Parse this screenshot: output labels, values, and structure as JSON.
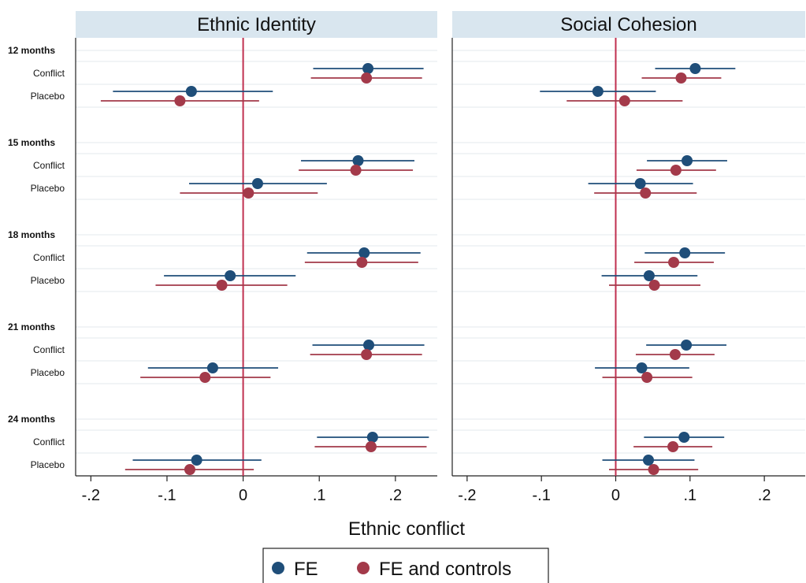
{
  "chart_data": {
    "type": "scatter",
    "subtype": "coefficient-plot",
    "xlabel": "Ethnic conflict",
    "xlim": [
      -0.22,
      0.255
    ],
    "xticks": [
      -0.2,
      -0.1,
      0,
      0.1,
      0.2
    ],
    "xtick_labels": [
      "-.2",
      "-.1",
      "0",
      ".1",
      ".2"
    ],
    "reference_line_x": 0,
    "reference_line_color": "#c0304f",
    "grid": "horizontal",
    "legend_position": "bottom",
    "group_labels": [
      "12 months",
      "15 months",
      "18 months",
      "21 months",
      "24 months"
    ],
    "row_labels": [
      "Conflict",
      "Placebo"
    ],
    "series": [
      {
        "name": "FE",
        "color": "#1f4e79",
        "marker": "circle"
      },
      {
        "name": "FE and controls",
        "color": "#a33a4a",
        "marker": "circle"
      }
    ],
    "panels": [
      {
        "title": "Ethnic Identity",
        "groups": [
          {
            "label": "12 months",
            "rows": [
              {
                "label": "Conflict",
                "FE": {
                  "est": 0.164,
                  "lo": 0.092,
                  "hi": 0.237
                },
                "FE and controls": {
                  "est": 0.162,
                  "lo": 0.089,
                  "hi": 0.235
                }
              },
              {
                "label": "Placebo",
                "FE": {
                  "est": -0.068,
                  "lo": -0.171,
                  "hi": 0.039
                },
                "FE and controls": {
                  "est": -0.083,
                  "lo": -0.187,
                  "hi": 0.021
                }
              }
            ]
          },
          {
            "label": "15 months",
            "rows": [
              {
                "label": "Conflict",
                "FE": {
                  "est": 0.151,
                  "lo": 0.076,
                  "hi": 0.225
                },
                "FE and controls": {
                  "est": 0.148,
                  "lo": 0.073,
                  "hi": 0.223
                }
              },
              {
                "label": "Placebo",
                "FE": {
                  "est": 0.019,
                  "lo": -0.071,
                  "hi": 0.11
                },
                "FE and controls": {
                  "est": 0.007,
                  "lo": -0.083,
                  "hi": 0.098
                }
              }
            ]
          },
          {
            "label": "18 months",
            "rows": [
              {
                "label": "Conflict",
                "FE": {
                  "est": 0.159,
                  "lo": 0.084,
                  "hi": 0.233
                },
                "FE and controls": {
                  "est": 0.156,
                  "lo": 0.081,
                  "hi": 0.23
                }
              },
              {
                "label": "Placebo",
                "FE": {
                  "est": -0.017,
                  "lo": -0.104,
                  "hi": 0.069
                },
                "FE and controls": {
                  "est": -0.028,
                  "lo": -0.115,
                  "hi": 0.058
                }
              }
            ]
          },
          {
            "label": "21 months",
            "rows": [
              {
                "label": "Conflict",
                "FE": {
                  "est": 0.165,
                  "lo": 0.091,
                  "hi": 0.238
                },
                "FE and controls": {
                  "est": 0.162,
                  "lo": 0.088,
                  "hi": 0.235
                }
              },
              {
                "label": "Placebo",
                "FE": {
                  "est": -0.04,
                  "lo": -0.125,
                  "hi": 0.046
                },
                "FE and controls": {
                  "est": -0.05,
                  "lo": -0.135,
                  "hi": 0.036
                }
              }
            ]
          },
          {
            "label": "24 months",
            "rows": [
              {
                "label": "Conflict",
                "FE": {
                  "est": 0.17,
                  "lo": 0.097,
                  "hi": 0.244
                },
                "FE and controls": {
                  "est": 0.168,
                  "lo": 0.094,
                  "hi": 0.241
                }
              },
              {
                "label": "Placebo",
                "FE": {
                  "est": -0.061,
                  "lo": -0.145,
                  "hi": 0.024
                },
                "FE and controls": {
                  "est": -0.07,
                  "lo": -0.155,
                  "hi": 0.014
                }
              }
            ]
          }
        ]
      },
      {
        "title": "Social Cohesion",
        "groups": [
          {
            "label": "12 months",
            "rows": [
              {
                "label": "Conflict",
                "FE": {
                  "est": 0.107,
                  "lo": 0.053,
                  "hi": 0.161
                },
                "FE and controls": {
                  "est": 0.088,
                  "lo": 0.035,
                  "hi": 0.142
                }
              },
              {
                "label": "Placebo",
                "FE": {
                  "est": -0.024,
                  "lo": -0.102,
                  "hi": 0.054
                },
                "FE and controls": {
                  "est": 0.012,
                  "lo": -0.066,
                  "hi": 0.09
                }
              }
            ]
          },
          {
            "label": "15 months",
            "rows": [
              {
                "label": "Conflict",
                "FE": {
                  "est": 0.096,
                  "lo": 0.042,
                  "hi": 0.15
                },
                "FE and controls": {
                  "est": 0.081,
                  "lo": 0.028,
                  "hi": 0.135
                }
              },
              {
                "label": "Placebo",
                "FE": {
                  "est": 0.033,
                  "lo": -0.037,
                  "hi": 0.104
                },
                "FE and controls": {
                  "est": 0.04,
                  "lo": -0.029,
                  "hi": 0.109
                }
              }
            ]
          },
          {
            "label": "18 months",
            "rows": [
              {
                "label": "Conflict",
                "FE": {
                  "est": 0.093,
                  "lo": 0.039,
                  "hi": 0.147
                },
                "FE and controls": {
                  "est": 0.078,
                  "lo": 0.025,
                  "hi": 0.132
                }
              },
              {
                "label": "Placebo",
                "FE": {
                  "est": 0.045,
                  "lo": -0.019,
                  "hi": 0.11
                },
                "FE and controls": {
                  "est": 0.052,
                  "lo": -0.009,
                  "hi": 0.114
                }
              }
            ]
          },
          {
            "label": "21 months",
            "rows": [
              {
                "label": "Conflict",
                "FE": {
                  "est": 0.095,
                  "lo": 0.041,
                  "hi": 0.149
                },
                "FE and controls": {
                  "est": 0.08,
                  "lo": 0.027,
                  "hi": 0.133
                }
              },
              {
                "label": "Placebo",
                "FE": {
                  "est": 0.035,
                  "lo": -0.028,
                  "hi": 0.099
                },
                "FE and controls": {
                  "est": 0.042,
                  "lo": -0.018,
                  "hi": 0.103
                }
              }
            ]
          },
          {
            "label": "24 months",
            "rows": [
              {
                "label": "Conflict",
                "FE": {
                  "est": 0.092,
                  "lo": 0.038,
                  "hi": 0.146
                },
                "FE and controls": {
                  "est": 0.077,
                  "lo": 0.024,
                  "hi": 0.13
                }
              },
              {
                "label": "Placebo",
                "FE": {
                  "est": 0.044,
                  "lo": -0.018,
                  "hi": 0.106
                },
                "FE and controls": {
                  "est": 0.051,
                  "lo": -0.009,
                  "hi": 0.111
                }
              }
            ]
          }
        ]
      }
    ]
  }
}
